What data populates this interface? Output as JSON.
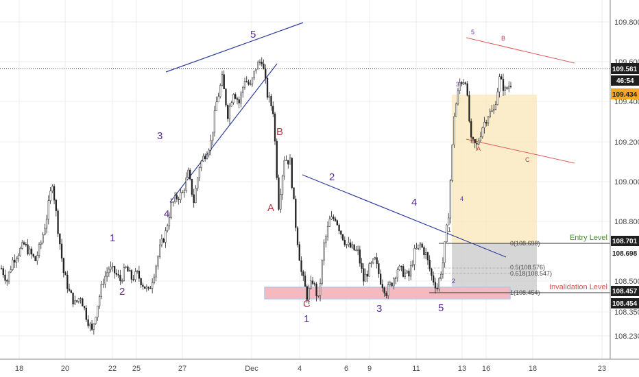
{
  "chart_data": {
    "type": "candlestick",
    "instrument_note": "",
    "y_axis": {
      "ticks": [
        "109.800",
        "109.600",
        "109.400",
        "109.200",
        "109.000",
        "108.800",
        "108.500",
        "108.350",
        "108.230"
      ],
      "ylim": [
        108.16,
        109.98
      ]
    },
    "x_axis": {
      "ticks": [
        "18",
        "20",
        "22",
        "25",
        "27",
        "Dec",
        "4",
        "6",
        "9",
        "11",
        "13",
        "16",
        "18",
        "23"
      ]
    },
    "price_labels": {
      "current": {
        "text": "109.561",
        "value": 109.561,
        "color": "#1f1f1f"
      },
      "countdown": {
        "text": "46:54",
        "color": "#1f1f1f"
      },
      "level_a": {
        "text": "109.434",
        "value": 109.434,
        "color": "#f5a623"
      },
      "entry": {
        "text": "108.701",
        "value": 108.701,
        "color": "#1f1f1f"
      },
      "entry_b": {
        "text": "108.698",
        "value": 108.698,
        "color": "#1f1f1f"
      },
      "invalid": {
        "text": "108.457",
        "value": 108.457,
        "color": "#1f1f1f"
      },
      "invalid_b": {
        "text": "108.454",
        "value": 108.454,
        "color": "#1f1f1f"
      }
    },
    "annotations": {
      "entry_label": "Entry Level",
      "invalidation_label": "Invalidation Level",
      "fib_0": "0(108.698)",
      "fib_05": "0.5(108.576)",
      "fib_0618": "0.618(108.547)",
      "fib_1": "1(108.454)"
    },
    "wave_labels": [
      {
        "text": "1",
        "color": "#5b2c8f"
      },
      {
        "text": "2",
        "color": "#5b2c8f"
      },
      {
        "text": "3",
        "color": "#5b2c8f"
      },
      {
        "text": "4",
        "color": "#5b2c8f"
      },
      {
        "text": "5",
        "color": "#5b2c8f"
      },
      {
        "text": "A",
        "color": "#b5394a"
      },
      {
        "text": "B",
        "color": "#b5394a"
      },
      {
        "text": "C",
        "color": "#b5394a"
      },
      {
        "text": "1",
        "color": "#5b2c8f"
      },
      {
        "text": "2",
        "color": "#5b2c8f"
      },
      {
        "text": "3",
        "color": "#5b2c8f"
      },
      {
        "text": "4",
        "color": "#5b2c8f"
      },
      {
        "text": "5",
        "color": "#5b2c8f"
      },
      {
        "text": "1",
        "color": "#5b2c8f"
      },
      {
        "text": "2",
        "color": "#5b2c8f"
      },
      {
        "text": "3",
        "color": "#5b2c8f"
      },
      {
        "text": "4",
        "color": "#5b2c8f"
      },
      {
        "text": "5",
        "color": "#5b2c8f"
      },
      {
        "text": "A",
        "color": "#b5394a"
      },
      {
        "text": "B",
        "color": "#b5394a"
      },
      {
        "text": "C",
        "color": "#b5394a"
      }
    ],
    "path": [
      108.62,
      108.56,
      108.66,
      108.7,
      108.74,
      108.7,
      108.66,
      108.75,
      108.88,
      109.06,
      108.82,
      108.6,
      108.5,
      108.44,
      108.48,
      108.38,
      108.3,
      108.44,
      108.56,
      108.62,
      108.6,
      108.56,
      108.62,
      108.57,
      108.59,
      108.54,
      108.5,
      108.6,
      108.72,
      108.8,
      108.94,
      108.98,
      109.0,
      109.1,
      108.96,
      109.14,
      109.2,
      109.26,
      109.46,
      109.58,
      109.4,
      109.52,
      109.46,
      109.58,
      109.54,
      109.64,
      109.68,
      109.5,
      109.42,
      108.94,
      109.18,
      109.16,
      108.84,
      108.6,
      108.48,
      108.56,
      108.46,
      108.74,
      108.86,
      108.88,
      108.8,
      108.74,
      108.72,
      108.7,
      108.56,
      108.62,
      108.66,
      108.56,
      108.5,
      108.55,
      108.62,
      108.6,
      108.58,
      108.7,
      108.74,
      108.69,
      108.58,
      108.52,
      108.65,
      108.9,
      109.4,
      109.56,
      109.58,
      109.26,
      109.24,
      109.34,
      109.4,
      109.42,
      109.58,
      109.52,
      109.56
    ]
  },
  "theme": {
    "accent_blue": "#2e3d9b",
    "red_line": "#e05a5a",
    "entry_green": "#4f8a3c",
    "invalid_red": "#d9534f",
    "fill_yellow": "#fbe7b8",
    "fill_pink": "#f5b9be",
    "fill_grey": "#c8c8c8",
    "candle": "#222222"
  }
}
